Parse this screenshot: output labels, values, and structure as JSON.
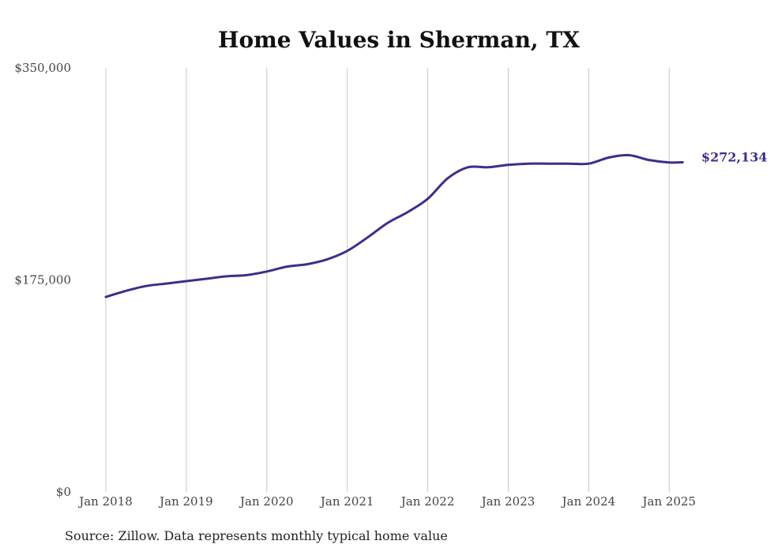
{
  "chart_data": {
    "type": "line",
    "title": "Home Values in Sherman, TX",
    "xlabel": "",
    "ylabel": "",
    "ylim": [
      0,
      350000
    ],
    "y_tick_labels": [
      "$350,000",
      "$175,000",
      "$0"
    ],
    "y_tick_values": [
      350000,
      175000,
      0
    ],
    "x_tick_labels": [
      "Jan 2018",
      "Jan 2019",
      "Jan 2020",
      "Jan 2021",
      "Jan 2022",
      "Jan 2023",
      "Jan 2024",
      "Jan 2025"
    ],
    "grid": "vertical",
    "series": [
      {
        "color": "#3b2f8a",
        "x": [
          "2018-01",
          "2018-04",
          "2018-07",
          "2018-10",
          "2019-01",
          "2019-04",
          "2019-07",
          "2019-10",
          "2020-01",
          "2020-04",
          "2020-07",
          "2020-10",
          "2021-01",
          "2021-04",
          "2021-07",
          "2021-10",
          "2022-01",
          "2022-04",
          "2022-07",
          "2022-10",
          "2023-01",
          "2023-04",
          "2023-07",
          "2023-10",
          "2024-01",
          "2024-04",
          "2024-07",
          "2024-10",
          "2025-01",
          "2025-03"
        ],
        "values": [
          161000,
          166000,
          170000,
          172000,
          174000,
          176000,
          178000,
          179000,
          182000,
          186000,
          188000,
          192000,
          199000,
          210000,
          222000,
          231000,
          242000,
          259000,
          268000,
          268000,
          270000,
          271000,
          271000,
          271000,
          271000,
          276000,
          278000,
          274000,
          272000,
          272134
        ]
      }
    ],
    "end_label": "$272,134"
  },
  "source_note": "Source: Zillow. Data represents monthly typical home value"
}
